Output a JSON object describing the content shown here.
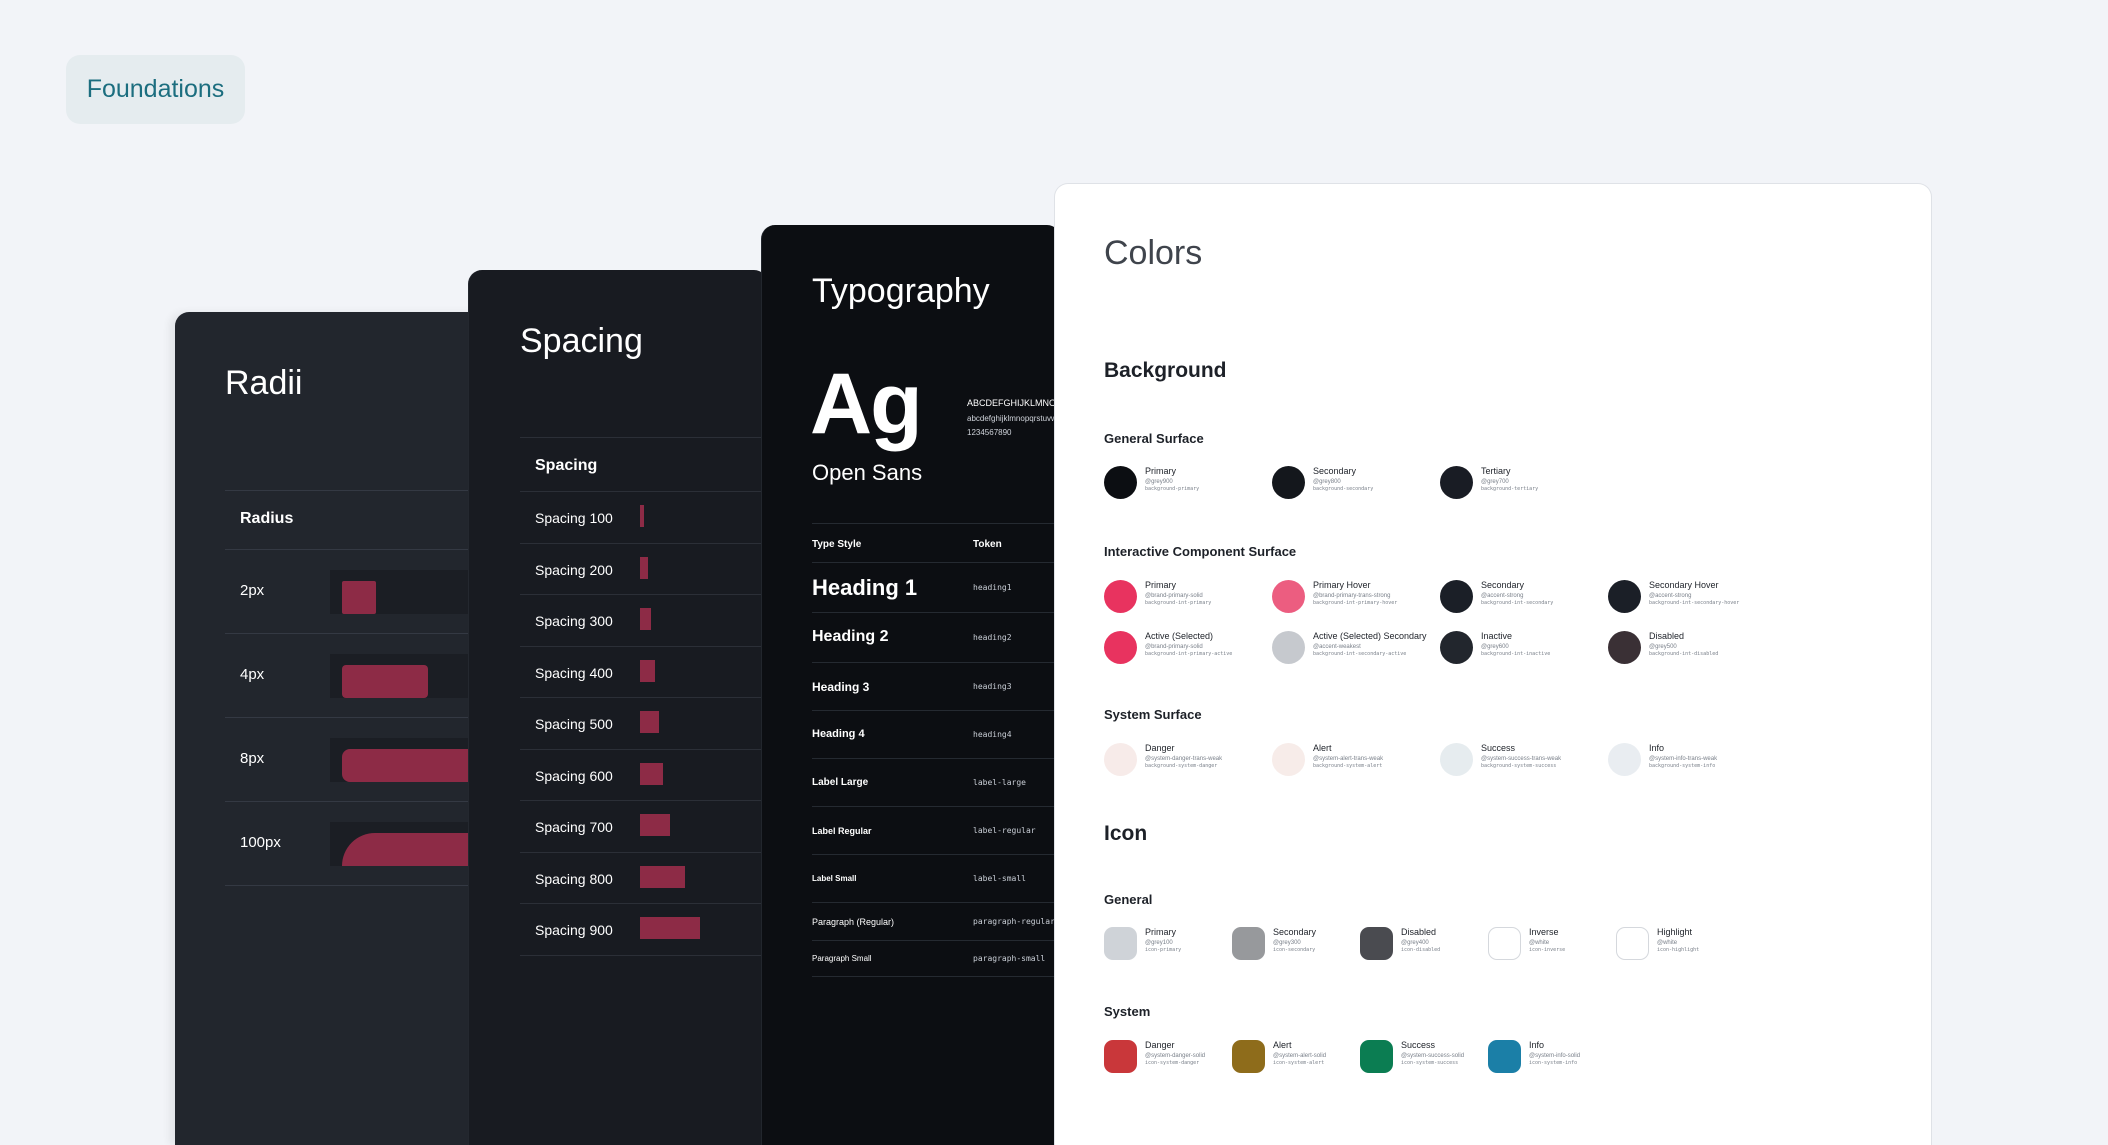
{
  "badge": "Foundations",
  "radii": {
    "title": "Radii",
    "header": "Radius",
    "rows": [
      {
        "label": "2px",
        "fill": 0.18
      },
      {
        "label": "4px",
        "fill": 0.45
      },
      {
        "label": "8px",
        "fill": 1.0
      },
      {
        "label": "100px",
        "fill": 1.0
      }
    ]
  },
  "spacing": {
    "title": "Spacing",
    "header": "Spacing",
    "rows": [
      {
        "label": "Spacing 100",
        "value": 4
      },
      {
        "label": "Spacing 200",
        "value": 8
      },
      {
        "label": "Spacing 300",
        "value": 12
      },
      {
        "label": "Spacing 400",
        "value": 16
      },
      {
        "label": "Spacing 500",
        "value": 20
      },
      {
        "label": "Spacing 600",
        "value": 24
      },
      {
        "label": "Spacing 700",
        "value": 32
      },
      {
        "label": "Spacing 800",
        "value": 48
      },
      {
        "label": "Spacing 900",
        "value": 64
      }
    ]
  },
  "typography": {
    "title": "Typography",
    "sample": "Ag",
    "font_name": "Open Sans",
    "uppercase": "ABCDEFGHIJKLMNOPQRSTUVWXYZ",
    "lowercase": "abcdefghijklmnopqrstuvwxyz",
    "digits": "1234567890",
    "col_style": "Type Style",
    "col_token": "Token",
    "rows": [
      {
        "style": "Heading 1",
        "token": "heading1"
      },
      {
        "style": "Heading 2",
        "token": "heading2"
      },
      {
        "style": "Heading 3",
        "token": "heading3"
      },
      {
        "style": "Heading 4",
        "token": "heading4"
      },
      {
        "style": "Label Large",
        "token": "label-large"
      },
      {
        "style": "Label Regular",
        "token": "label-regular"
      },
      {
        "style": "Label Small",
        "token": "label-small"
      },
      {
        "style": "Paragraph (Regular)",
        "token": "paragraph-regular"
      },
      {
        "style": "Paragraph Small",
        "token": "paragraph-small"
      }
    ]
  },
  "colors": {
    "title": "Colors",
    "background": {
      "heading": "Background",
      "general": {
        "heading": "General Surface",
        "swatches": [
          {
            "name": "Primary",
            "token": "@grey900",
            "class": "background-primary",
            "color": "#0c0e12"
          },
          {
            "name": "Secondary",
            "token": "@grey800",
            "class": "background-secondary",
            "color": "#14171c"
          },
          {
            "name": "Tertiary",
            "token": "@grey700",
            "class": "background-tertiary",
            "color": "#191c24"
          }
        ]
      },
      "interactive": {
        "heading": "Interactive Component Surface",
        "swatches": [
          {
            "name": "Primary",
            "token": "@brand-primary-solid",
            "class": "background-int-primary",
            "color": "#e8335f"
          },
          {
            "name": "Primary Hover",
            "token": "@brand-primary-trans-strong",
            "class": "background-int-primary-hover",
            "color": "#ec5d80"
          },
          {
            "name": "Secondary",
            "token": "@accent-strong",
            "class": "background-int-secondary",
            "color": "#1b1f27"
          },
          {
            "name": "Secondary Hover",
            "token": "@accent-strong",
            "class": "background-int-secondary-hover",
            "color": "#1b1f27"
          },
          {
            "name": "Active (Selected)",
            "token": "@brand-primary-solid",
            "class": "background-int-primary-active",
            "color": "#e8335f"
          },
          {
            "name": "Active (Selected) Secondary",
            "token": "@accent-weakest",
            "class": "background-int-secondary-active",
            "color": "#c6c9ce"
          },
          {
            "name": "Inactive",
            "token": "@grey600",
            "class": "background-int-inactive",
            "color": "#22262d"
          },
          {
            "name": "Disabled",
            "token": "@grey500",
            "class": "background-int-disabled",
            "color": "#3a3035"
          }
        ]
      },
      "system": {
        "heading": "System Surface",
        "swatches": [
          {
            "name": "Danger",
            "token": "@system-danger-trans-weak",
            "class": "background-system-danger",
            "color": "#f7ebe9"
          },
          {
            "name": "Alert",
            "token": "@system-alert-trans-weak",
            "class": "background-system-alert",
            "color": "#f7ece9"
          },
          {
            "name": "Success",
            "token": "@system-success-trans-weak",
            "class": "background-system-success",
            "color": "#e6ecef"
          },
          {
            "name": "Info",
            "token": "@system-info-trans-weak",
            "class": "background-system-info",
            "color": "#e9edf1"
          }
        ]
      }
    },
    "icon": {
      "heading": "Icon",
      "general": {
        "heading": "General",
        "swatches": [
          {
            "name": "Primary",
            "token": "@grey100",
            "class": "icon-primary",
            "color": "#cfd3d8"
          },
          {
            "name": "Secondary",
            "token": "@grey300",
            "class": "icon-secondary",
            "color": "#97999c"
          },
          {
            "name": "Disabled",
            "token": "@grey400",
            "class": "icon-disabled",
            "color": "#4a4b50"
          },
          {
            "name": "Inverse",
            "token": "@white",
            "class": "icon-inverse",
            "color": "#ffffff"
          },
          {
            "name": "Highlight",
            "token": "@white",
            "class": "icon-highlight",
            "color": "#ffffff"
          }
        ]
      },
      "system": {
        "heading": "System",
        "swatches": [
          {
            "name": "Danger",
            "token": "@system-danger-solid",
            "class": "icon-system-danger",
            "color": "#c9373a"
          },
          {
            "name": "Alert",
            "token": "@system-alert-solid",
            "class": "icon-system-alert",
            "color": "#8e6c1b"
          },
          {
            "name": "Success",
            "token": "@system-success-solid",
            "class": "icon-system-success",
            "color": "#0b7d52"
          },
          {
            "name": "Info",
            "token": "@system-info-solid",
            "class": "icon-system-info",
            "color": "#1b7fa7"
          }
        ]
      }
    }
  }
}
